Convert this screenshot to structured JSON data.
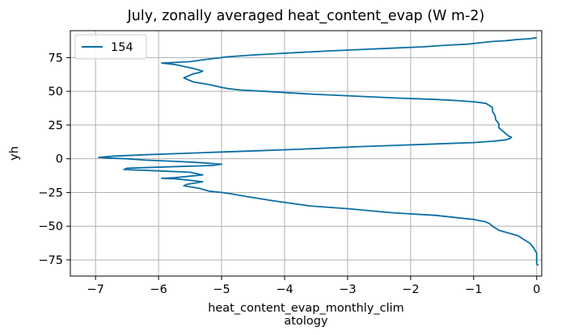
{
  "chart_data": {
    "type": "line",
    "title": "July, zonally averaged heat_content_evap (W m-2)",
    "xlabel_lines": [
      "heat_content_evap_monthly_clim",
      "atology"
    ],
    "ylabel": "yh",
    "xlim": [
      -7.4,
      0.08
    ],
    "ylim": [
      -87,
      95
    ],
    "xticks": [
      -7,
      -6,
      -5,
      -4,
      -3,
      -2,
      -1,
      0
    ],
    "xtick_labels": [
      "−7",
      "−6",
      "−5",
      "−4",
      "−3",
      "−2",
      "−1",
      "0"
    ],
    "yticks": [
      75,
      50,
      25,
      0,
      -25,
      -50,
      -75
    ],
    "ytick_labels": [
      "75",
      "50",
      "25",
      "0",
      "−25",
      "−50",
      "−75"
    ],
    "grid": true,
    "legend_position": "top-left",
    "series": [
      {
        "name": "154",
        "color": "#0a6ea4",
        "x": [
          0.03,
          0.0,
          0.0,
          -0.05,
          -0.1,
          -0.3,
          -0.6,
          -0.7,
          -0.75,
          -0.8,
          -0.83,
          -0.9,
          -1.0,
          -1.2,
          -1.6,
          -2.3,
          -3.0,
          -3.6,
          -4.2,
          -4.6,
          -4.85,
          -5.0,
          -5.2,
          -5.35,
          -5.6,
          -5.55,
          -5.3,
          -5.7,
          -5.95,
          -5.75,
          -5.3,
          -5.5,
          -6.0,
          -6.55,
          -6.5,
          -5.85,
          -5.15,
          -5.0,
          -5.3,
          -5.7,
          -6.2,
          -6.5,
          -6.8,
          -6.95,
          -6.7,
          -6.2,
          -5.6,
          -5.0,
          -4.4,
          -3.8,
          -3.3,
          -2.8,
          -2.2,
          -1.6,
          -1.0,
          -0.7,
          -0.5,
          -0.42,
          -0.4,
          -0.45,
          -0.5,
          -0.55,
          -0.6,
          -0.6,
          -0.65,
          -0.66,
          -0.7,
          -0.7,
          -0.8,
          -0.95,
          -1.2,
          -1.6,
          -2.2,
          -2.9,
          -3.6,
          -4.3,
          -4.7,
          -4.9,
          -5.0,
          -5.2,
          -5.45,
          -5.6,
          -5.45,
          -5.35,
          -5.3,
          -5.45,
          -5.75,
          -5.95,
          -5.5,
          -5.2,
          -5.0,
          -4.95,
          -4.5,
          -4.1,
          -3.7,
          -3.3,
          -2.8,
          -2.3,
          -1.8,
          -1.5,
          -1.3,
          -1.1,
          -1.0,
          -0.9,
          -0.7,
          -0.5,
          -0.4,
          -0.3,
          -0.1,
          -0.05,
          0.0
        ],
        "y": [
          -79,
          -78,
          -70,
          -66,
          -63,
          -57,
          -53,
          -50,
          -48,
          -47,
          -46.5,
          -46,
          -45,
          -44,
          -42,
          -40,
          -37,
          -35,
          -31,
          -28,
          -26,
          -25,
          -24,
          -22,
          -20,
          -19,
          -17,
          -15,
          -14.5,
          -14,
          -12,
          -10,
          -9,
          -8,
          -7,
          -6,
          -5,
          -4,
          -3,
          -2,
          -1,
          0,
          0.5,
          1,
          2,
          3,
          4,
          5,
          6,
          7,
          8,
          9,
          10,
          11,
          12,
          13,
          14,
          15,
          16,
          17,
          19,
          21,
          23,
          26,
          29,
          32,
          35,
          38,
          41,
          42,
          43,
          44,
          45,
          46.5,
          48,
          50,
          51,
          52,
          53,
          55,
          57,
          60,
          63,
          64,
          65,
          67,
          70,
          71,
          72,
          74,
          75,
          75.5,
          77,
          78,
          79,
          80,
          81,
          82,
          83,
          84,
          84.5,
          85,
          85.5,
          86,
          87,
          87.5,
          88,
          88.5,
          89,
          89.5,
          89.8
        ]
      }
    ]
  }
}
